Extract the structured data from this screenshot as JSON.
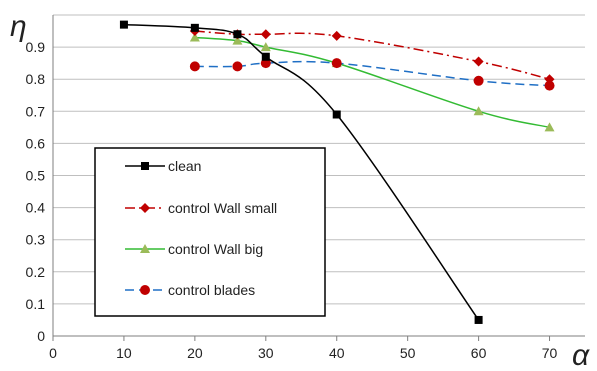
{
  "chart_data": {
    "type": "line",
    "xlabel": "α",
    "ylabel": "η",
    "xlim": [
      0,
      75
    ],
    "ylim": [
      0,
      1
    ],
    "x_ticks": [
      0,
      10,
      20,
      30,
      40,
      50,
      60,
      70
    ],
    "y_ticks": [
      0,
      0.1,
      0.2,
      0.3,
      0.4,
      0.5,
      0.6,
      0.7,
      0.8,
      0.9
    ],
    "grid": "horizontal",
    "legend_position": "bottom-left",
    "series": [
      {
        "name": "clean",
        "color": "#000000",
        "marker": "square",
        "line_style": "solid",
        "x": [
          10,
          20,
          26,
          30,
          40,
          60
        ],
        "y": [
          0.97,
          0.96,
          0.94,
          0.87,
          0.69,
          0.05
        ]
      },
      {
        "name": "control Wall small",
        "color": "#c00000",
        "marker": "diamond",
        "line_style": "dash-dot",
        "x": [
          20,
          26,
          30,
          40,
          60,
          70
        ],
        "y": [
          0.95,
          0.94,
          0.94,
          0.935,
          0.855,
          0.8
        ]
      },
      {
        "name": "control Wall big",
        "color": "#33bb33",
        "marker": "triangle",
        "line_style": "solid",
        "x": [
          20,
          26,
          30,
          40,
          60,
          70
        ],
        "y": [
          0.93,
          0.92,
          0.9,
          0.85,
          0.7,
          0.65
        ]
      },
      {
        "name": "control blades",
        "color": "#1f6fc5",
        "marker": "circle",
        "line_style": "dashed",
        "x": [
          20,
          26,
          30,
          40,
          60,
          70
        ],
        "y": [
          0.84,
          0.84,
          0.85,
          0.85,
          0.795,
          0.78
        ]
      }
    ]
  }
}
